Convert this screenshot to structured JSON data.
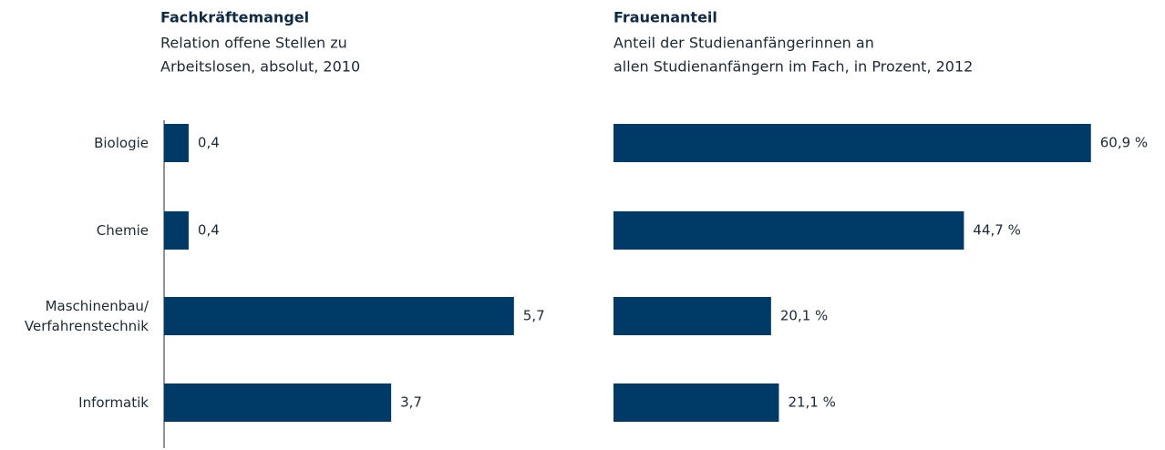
{
  "chart_data": [
    {
      "type": "bar",
      "orientation": "horizontal",
      "title": "Fachkräftemangel",
      "subtitle": [
        "Relation offene Stellen zu",
        "Arbeitslosen, absolut, 2010"
      ],
      "categories": [
        "Biologie",
        "Chemie",
        "Maschinenbau/ Verfahrenstechnik",
        "Informatik"
      ],
      "values": [
        0.4,
        0.4,
        5.7,
        3.7
      ],
      "value_labels": [
        "0,4",
        "0,4",
        "5,7",
        "3,7"
      ],
      "color": "#003a66",
      "xlim": [
        0,
        6
      ]
    },
    {
      "type": "bar",
      "orientation": "horizontal",
      "title": "Frauenanteil",
      "subtitle": [
        "Anteil der Studienanfängerinnen an",
        "allen Studienanfängern im Fach, in Prozent, 2012"
      ],
      "values": [
        60.9,
        44.7,
        20.1,
        21.1
      ],
      "value_labels": [
        "60,9 %",
        "44,7 %",
        "20,1 %",
        "21,1 %"
      ],
      "color": "#003a66",
      "xlim": [
        0,
        70
      ]
    }
  ]
}
